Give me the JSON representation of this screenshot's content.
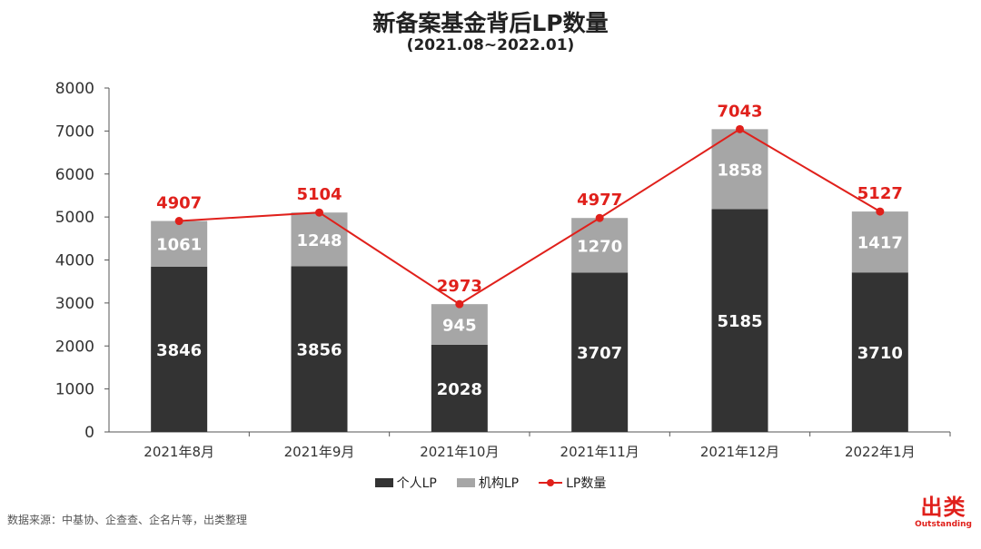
{
  "title": "新备案基金背后LP数量",
  "subtitle": "(2021.08~2022.01)",
  "source": "数据来源：中基协、企查查、企名片等，出类整理",
  "brand": {
    "name": "出类",
    "sub": "Outstanding"
  },
  "colors": {
    "individual": "#333333",
    "institution": "#a6a6a6",
    "total": "#e0201b"
  },
  "chart_data": {
    "type": "bar",
    "stacked": true,
    "categories": [
      "2021年8月",
      "2021年9月",
      "2021年10月",
      "2021年11月",
      "2021年12月",
      "2022年1月"
    ],
    "series": [
      {
        "name": "个人LP",
        "type": "bar",
        "values": [
          3846,
          3856,
          2028,
          3707,
          5185,
          3710
        ]
      },
      {
        "name": "机构LP",
        "type": "bar",
        "values": [
          1061,
          1248,
          945,
          1270,
          1858,
          1417
        ]
      },
      {
        "name": "LP数量",
        "type": "line",
        "values": [
          4907,
          5104,
          2973,
          4977,
          7043,
          5127
        ]
      }
    ],
    "ylim": [
      0,
      8000
    ],
    "yticks": [
      0,
      1000,
      2000,
      3000,
      4000,
      5000,
      6000,
      7000,
      8000
    ],
    "grid": false,
    "legend_position": "bottom"
  }
}
